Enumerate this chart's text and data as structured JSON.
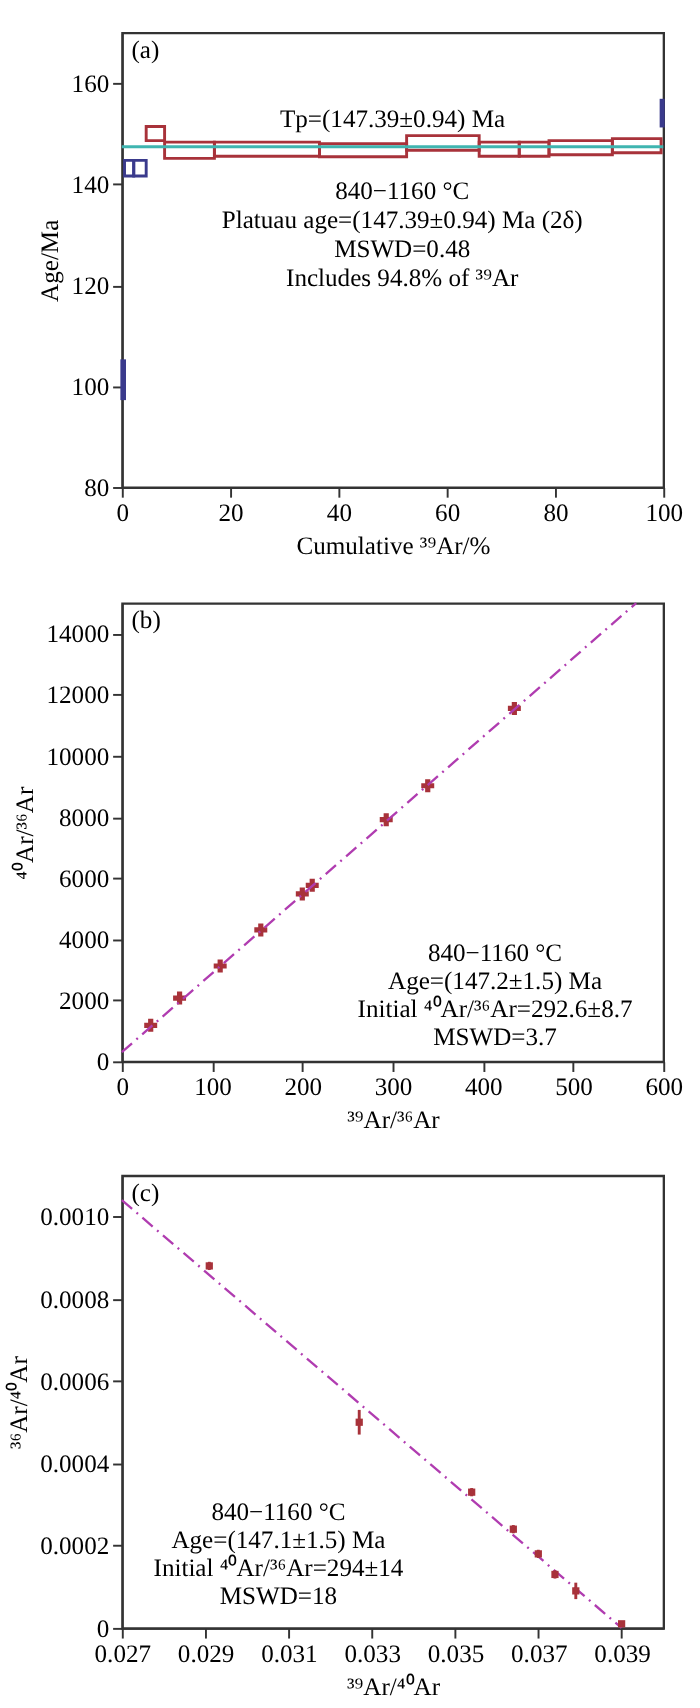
{
  "chart_data": [
    {
      "type": "histogram",
      "title": "(a)",
      "xlabel": "Cumulative ³⁹Ar/%",
      "ylabel": "Age/Ma",
      "bins": [
        0,
        0.5,
        2.2,
        4.5,
        7.9,
        17.1,
        36.5,
        52.6,
        66,
        73.4,
        78.9,
        90.6,
        99.6,
        100
      ],
      "base": [
        97.5,
        141.6,
        141.6,
        148.6,
        145.1,
        145.5,
        145.4,
        146.7,
        145.5,
        145.5,
        145.8,
        146.2,
        151.5
      ],
      "values": [
        7.5,
        3.1,
        3.1,
        2.8,
        3.2,
        2.8,
        2.6,
        2.9,
        2.8,
        2.8,
        2.8,
        2.8,
        5.1
      ],
      "colors": [
        "#3a3a8c",
        "#3a3a8c",
        "#3a3a8c",
        "#a8323a",
        "#a8323a",
        "#a8323a",
        "#a8323a",
        "#a8323a",
        "#a8323a",
        "#a8323a",
        "#a8323a",
        "#a8323a",
        "#3a3a8c"
      ],
      "xlim": [
        0,
        100
      ],
      "xticks": [
        0,
        20,
        40,
        60,
        80,
        100
      ],
      "ylim": [
        80,
        170
      ],
      "yticks": [
        80,
        100,
        120,
        140,
        160
      ],
      "ref_lines": [
        {
          "axis": "y",
          "value": 147.39,
          "label": "Tp=(147.39±0.94) Ma",
          "color": "#3fb5b0"
        }
      ],
      "annotations": [
        "840−1160 °C",
        "Platuau age=(147.39±0.94) Ma (2δ)",
        "MSWD=0.48",
        "Includes 94.8% of ³⁹Ar"
      ],
      "grid": false
    },
    {
      "type": "scatter",
      "title": "(b)",
      "xlabel": "³⁹Ar/³⁶Ar",
      "ylabel": "⁴⁰Ar/³⁶Ar",
      "series": [
        {
          "type": "scatter",
          "color": "#a8323a",
          "marker": "cross",
          "x": [
            32,
            64,
            109,
            154,
            200,
            211,
            293,
            339,
            435
          ],
          "values": [
            1180,
            2070,
            3120,
            4300,
            5480,
            5760,
            7910,
            9020,
            11550
          ]
        },
        {
          "type": "line",
          "color": "#b03cb0",
          "line_style": "dashed",
          "x": [
            0,
            570
          ],
          "values": [
            300,
            15000
          ]
        }
      ],
      "xlim": [
        0,
        600
      ],
      "xticks": [
        0,
        100,
        200,
        300,
        400,
        500,
        600
      ],
      "ylim": [
        0,
        15000
      ],
      "yticks": [
        0,
        2000,
        4000,
        6000,
        8000,
        10000,
        12000,
        14000
      ],
      "annotations": [
        "840−1160 °C",
        "Age=(147.2±1.5) Ma",
        "Initial ⁴⁰Ar/³⁶Ar=292.6±8.7",
        "MSWD=3.7"
      ],
      "grid": false
    },
    {
      "type": "scatter",
      "title": "(c)",
      "xlabel": "³⁹Ar/⁴⁰Ar",
      "ylabel": "³⁶Ar/⁴⁰Ar",
      "series": [
        {
          "type": "line",
          "color": "#b03cb0",
          "line_style": "dashed",
          "x": [
            0.027,
            0.039
          ],
          "values": [
            0.00104,
            0
          ]
        },
        {
          "type": "scatter",
          "color": "#a8323a",
          "marker": "square",
          "x": [
            0.0291,
            0.0327,
            0.0354,
            0.0364,
            0.037,
            0.0374,
            0.0379,
            0.039
          ],
          "values": [
            0.00088,
            0.0005,
            0.00033,
            0.00024,
            0.00018,
            0.00013,
            9e-05,
            1e-05
          ],
          "errors": [
            1e-05,
            3e-05,
            1e-05,
            1e-05,
            1e-05,
            1e-05,
            2e-05,
            null
          ]
        }
      ],
      "xlim": [
        0.027,
        0.04
      ],
      "xticks": [
        0.027,
        0.029,
        0.031,
        0.033,
        0.035,
        0.037,
        0.039
      ],
      "ylim": [
        0,
        0.0011
      ],
      "yticks": [
        0,
        0.0002,
        0.0004,
        0.0006,
        0.0008,
        {
          "value": 0.001,
          "label": "0.0010"
        }
      ],
      "annotations": [
        "840−1160 °C",
        "Age=(147.1±1.5) Ma",
        "Initial ⁴⁰Ar/³⁶Ar=294±14",
        "MSWD=18"
      ],
      "grid": false
    }
  ]
}
